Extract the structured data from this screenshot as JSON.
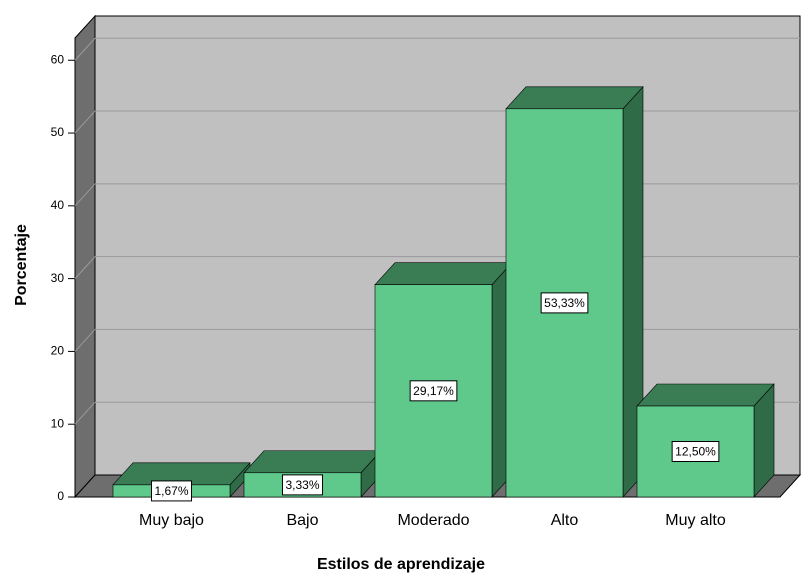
{
  "chart_data": {
    "type": "bar3d",
    "x_label": "Estilos de aprendizaje",
    "y_label": "Porcentaje",
    "categories": [
      "Muy bajo",
      "Bajo",
      "Moderado",
      "Alto",
      "Muy alto"
    ],
    "values": [
      1.67,
      3.33,
      29.17,
      53.33,
      12.5
    ],
    "value_labels": [
      "1,67%",
      "3,33%",
      "29,17%",
      "53,33%",
      "12,50%"
    ],
    "color": "#5ec98a",
    "ylim": [
      0,
      63
    ],
    "yticks": [
      0,
      10,
      20,
      30,
      40,
      50,
      60
    ],
    "grid": true
  }
}
